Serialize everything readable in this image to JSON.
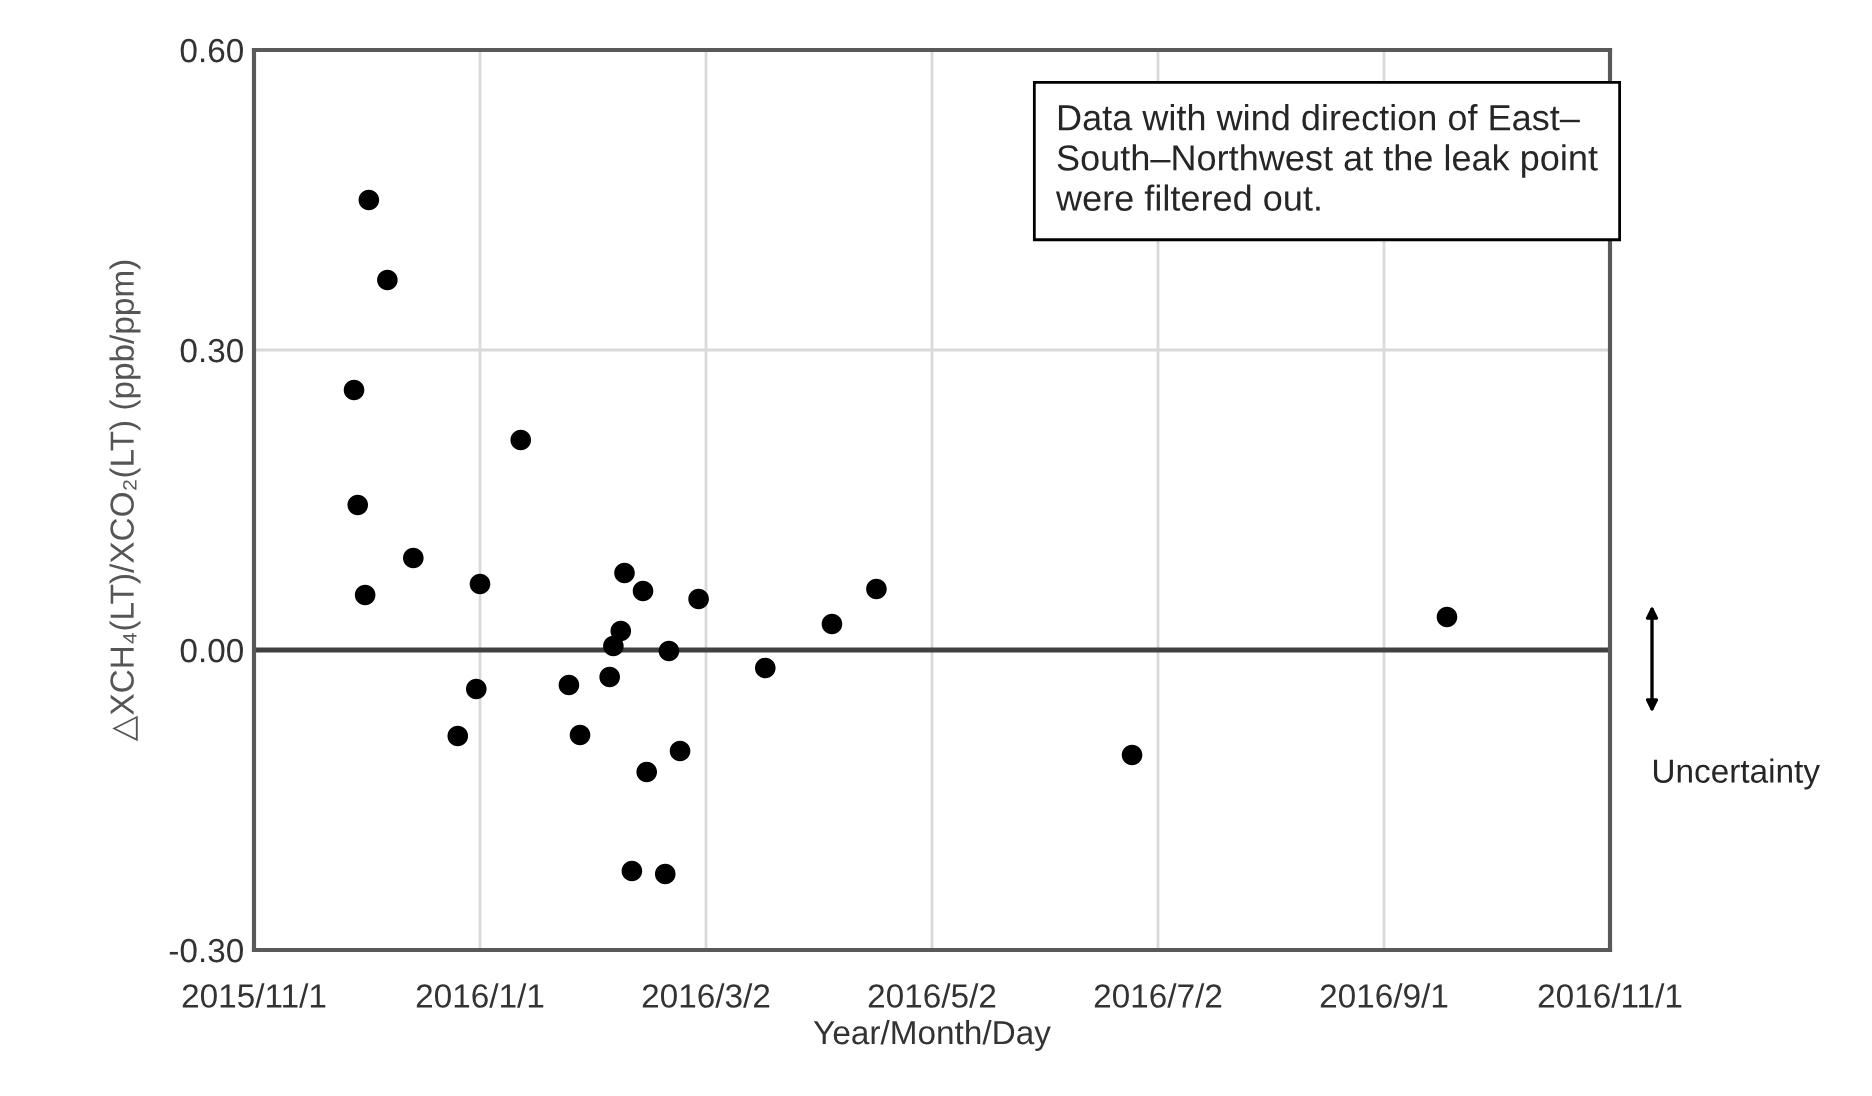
{
  "chart_data": {
    "type": "scatter",
    "xlabel": "Year/Month/Day",
    "ylabel": "△XCH₄(LT)/XCO₂(LT) (ppb/ppm)",
    "x": [
      "2015-12-02",
      "2015-12-07",
      "2015-11-28",
      "2016-01-12",
      "2015-11-29",
      "2015-12-14",
      "2015-12-01",
      "2016-01-01",
      "2016-02-09",
      "2016-02-14",
      "2016-02-29",
      "2016-02-08",
      "2016-02-06",
      "2016-02-21",
      "2016-03-18",
      "2016-04-05",
      "2016-04-17",
      "2015-12-31",
      "2016-01-25",
      "2016-02-05",
      "2015-12-26",
      "2016-01-28",
      "2016-02-24",
      "2016-02-15",
      "2016-02-11",
      "2016-02-20",
      "2016-09-18",
      "2016-06-25"
    ],
    "series": [
      {
        "color": "#000000",
        "values": [
          0.45,
          0.37,
          0.26,
          0.21,
          0.145,
          0.092,
          0.055,
          0.066,
          0.077,
          0.059,
          0.051,
          0.019,
          0.004,
          -0.001,
          -0.018,
          0.026,
          0.061,
          -0.039,
          -0.035,
          -0.027,
          -0.086,
          -0.085,
          -0.101,
          -0.122,
          -0.221,
          -0.224,
          0.033,
          -0.105
        ]
      }
    ],
    "marker": "circle",
    "xlim": [
      "2015-11-01",
      "2016-11-01"
    ],
    "xticks": [
      {
        "value": "2015-11-01",
        "label": "2015/11/1"
      },
      {
        "value": "2016-01-01",
        "label": "2016/1/1"
      },
      {
        "value": "2016-03-02",
        "label": "2016/3/2"
      },
      {
        "value": "2016-05-02",
        "label": "2016/5/2"
      },
      {
        "value": "2016-07-02",
        "label": "2016/7/2"
      },
      {
        "value": "2016-09-01",
        "label": "2016/9/1"
      },
      {
        "value": "2016-11-01",
        "label": "2016/11/1"
      }
    ],
    "ylim": [
      -0.3,
      0.6
    ],
    "yticks": [
      {
        "value": -0.3,
        "label": "-0.30"
      },
      {
        "value": 0.0,
        "label": "0.00"
      },
      {
        "value": 0.3,
        "label": "0.30"
      },
      {
        "value": 0.6,
        "label": "0.60"
      }
    ],
    "ref_lines": [
      {
        "axis": "y",
        "value": 0,
        "color": "#404040"
      }
    ],
    "grid": true,
    "annotations": [
      "Data with wind direction of East–\nSouth–Northwest at the leak point\nwere filtered out.",
      "Uncertainty"
    ]
  }
}
